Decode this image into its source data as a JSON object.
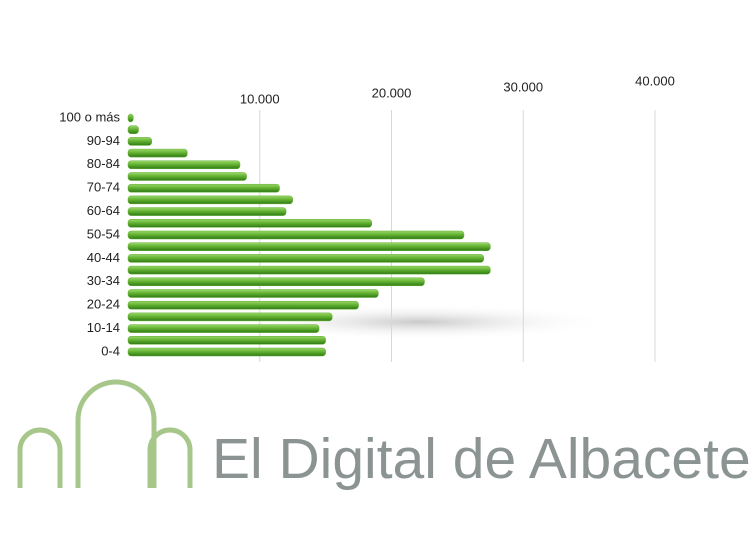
{
  "chart_data": {
    "type": "bar",
    "orientation": "horizontal",
    "categories": [
      "100 o más",
      null,
      "90-94",
      null,
      "80-84",
      null,
      "70-74",
      null,
      "60-64",
      null,
      "50-54",
      null,
      "40-44",
      null,
      "30-34",
      null,
      "20-24",
      null,
      "10-14",
      null,
      "0-4"
    ],
    "values": [
      400,
      800,
      1800,
      4500,
      8500,
      9000,
      11500,
      12500,
      12000,
      18500,
      25500,
      27500,
      27000,
      27500,
      22500,
      19000,
      17500,
      15500,
      14500,
      15000,
      15000
    ],
    "color": "#5fae2e",
    "xlim": [
      0,
      40000
    ],
    "xticks": [
      {
        "value": 10000,
        "label": "10.000"
      },
      {
        "value": 20000,
        "label": "20.000"
      },
      {
        "value": 30000,
        "label": "30.000"
      },
      {
        "value": 40000,
        "label": "40.000"
      }
    ],
    "grid": true
  },
  "logo": {
    "text": "El Digital de Albacete"
  }
}
